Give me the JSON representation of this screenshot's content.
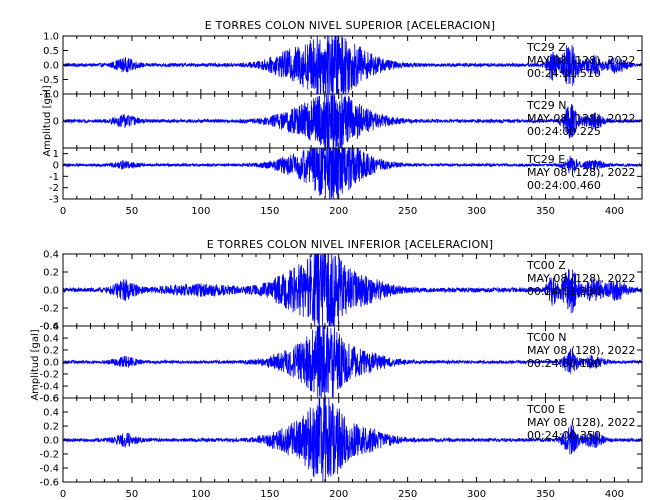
{
  "chart_data": [
    {
      "type": "line",
      "title": "E TORRES COLON NIVEL SUPERIOR [ACELERACION]",
      "ylabel": "Amplitud [gal]",
      "xlim": [
        0,
        420
      ],
      "x_ticks": [
        0,
        50,
        100,
        150,
        200,
        250,
        300,
        350,
        400
      ],
      "trace_color": "#0000ff",
      "series": [
        {
          "station": "TC29",
          "component": "Z",
          "date_line": "MAY 08 (128), 2022",
          "time_line": "00:24:01.510",
          "ylim": [
            -1.0,
            1.0
          ],
          "y_ticks": [
            "1.0",
            "0.5",
            "0.0",
            "-0.5",
            "-1.0"
          ],
          "y_tick_values": [
            1.0,
            0.5,
            0.0,
            -0.5,
            -1.0
          ],
          "noise": 0.06,
          "events": [
            [
              45,
              6,
              0.2
            ],
            [
              170,
              15,
              0.5
            ],
            [
              195,
              12,
              1.0
            ],
            [
              215,
              15,
              0.35
            ],
            [
              355,
              3,
              0.5
            ],
            [
              368,
              4,
              0.8
            ],
            [
              385,
              5,
              0.3
            ],
            [
              402,
              5,
              0.25
            ]
          ]
        },
        {
          "station": "TC29",
          "component": "N",
          "date_line": "MAY 08 (128), 2022",
          "time_line": "00:24:00.225",
          "ylim": [
            -1.0,
            1.0
          ],
          "y_ticks": [
            "0"
          ],
          "y_tick_values": [
            0
          ],
          "noise": 0.06,
          "events": [
            [
              45,
              6,
              0.2
            ],
            [
              172,
              15,
              0.4
            ],
            [
              195,
              12,
              0.9
            ],
            [
              215,
              15,
              0.35
            ],
            [
              368,
              4,
              0.6
            ],
            [
              385,
              5,
              0.3
            ]
          ]
        },
        {
          "station": "TC29",
          "component": "E",
          "date_line": "MAY 08 (128), 2022",
          "time_line": "00:24:00.460",
          "ylim": [
            -3.0,
            1.5
          ],
          "y_ticks": [
            "1",
            "0",
            "-1",
            "-2",
            "-3"
          ],
          "y_tick_values": [
            1,
            0,
            -1,
            -2,
            -3
          ],
          "noise": 0.12,
          "events": [
            [
              45,
              6,
              0.3
            ],
            [
              172,
              15,
              0.8
            ],
            [
              195,
              12,
              2.6
            ],
            [
              215,
              15,
              0.7
            ],
            [
              368,
              4,
              0.7
            ],
            [
              385,
              5,
              0.4
            ]
          ]
        }
      ]
    },
    {
      "type": "line",
      "title": "E TORRES COLON NIVEL INFERIOR [ACELERACION]",
      "ylabel": "Amplitud [gal]",
      "xlim": [
        0,
        420
      ],
      "x_ticks": [
        0,
        50,
        100,
        150,
        200,
        250,
        300,
        350,
        400
      ],
      "trace_color": "#0000ff",
      "series": [
        {
          "station": "TC00",
          "component": "Z",
          "date_line": "MAY 08 (128), 2022",
          "time_line": "00:24:01.330",
          "ylim": [
            -0.4,
            0.4
          ],
          "y_ticks": [
            "0.4",
            "0.2",
            "0.0",
            "-0.2",
            "-0.4"
          ],
          "y_tick_values": [
            0.4,
            0.2,
            0.0,
            -0.2,
            -0.4
          ],
          "noise": 0.025,
          "events": [
            [
              45,
              6,
              0.1
            ],
            [
              100,
              20,
              0.05
            ],
            [
              170,
              15,
              0.2
            ],
            [
              190,
              10,
              0.38
            ],
            [
              215,
              15,
              0.15
            ],
            [
              355,
              3,
              0.15
            ],
            [
              368,
              4,
              0.25
            ],
            [
              385,
              5,
              0.12
            ],
            [
              402,
              5,
              0.1
            ]
          ]
        },
        {
          "station": "TC00",
          "component": "N",
          "date_line": "MAY 08 (128), 2022",
          "time_line": "00:24:00.190",
          "ylim": [
            -0.6,
            0.6
          ],
          "y_ticks": [
            "0.6",
            "0.4",
            "0.2",
            "0.0",
            "-0.2",
            "-0.4",
            "-0.6"
          ],
          "y_tick_values": [
            0.6,
            0.4,
            0.2,
            0.0,
            -0.2,
            -0.4,
            -0.6
          ],
          "noise": 0.025,
          "events": [
            [
              45,
              6,
              0.08
            ],
            [
              170,
              15,
              0.2
            ],
            [
              190,
              10,
              0.55
            ],
            [
              215,
              15,
              0.18
            ],
            [
              368,
              4,
              0.2
            ],
            [
              385,
              5,
              0.1
            ]
          ]
        },
        {
          "station": "TC00",
          "component": "E",
          "date_line": "MAY 08 (128), 2022",
          "time_line": "00:24:00.350",
          "ylim": [
            -0.6,
            0.6
          ],
          "y_ticks": [
            "0.6",
            "0.4",
            "0.2",
            "0.0",
            "-0.2",
            "-0.4",
            "-0.6"
          ],
          "y_tick_values": [
            0.6,
            0.4,
            0.2,
            0.0,
            -0.2,
            -0.4,
            -0.6
          ],
          "noise": 0.025,
          "events": [
            [
              45,
              6,
              0.08
            ],
            [
              170,
              15,
              0.2
            ],
            [
              190,
              10,
              0.5
            ],
            [
              215,
              15,
              0.18
            ],
            [
              368,
              4,
              0.2
            ],
            [
              385,
              5,
              0.1
            ]
          ]
        }
      ]
    }
  ]
}
